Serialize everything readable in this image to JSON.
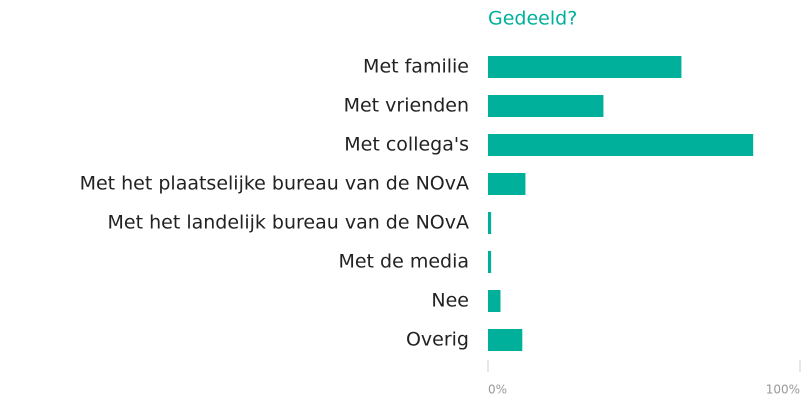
{
  "chart_data": {
    "type": "hbar",
    "title": "Gedeeld?",
    "categories": [
      "Met familie",
      "Met vrienden",
      "Met collega's",
      "Met het plaatselijke bureau van de NOvA",
      "Met het landelijk bureau van de NOvA",
      "Met de media",
      "Nee",
      "Overig"
    ],
    "values": [
      62,
      37,
      85,
      12,
      1,
      1,
      4,
      11
    ],
    "color": "#00b09b",
    "xlim": [
      0,
      100
    ],
    "xticks": [
      {
        "value": 0,
        "label": "0%"
      },
      {
        "value": 100,
        "label": "100%"
      }
    ]
  }
}
